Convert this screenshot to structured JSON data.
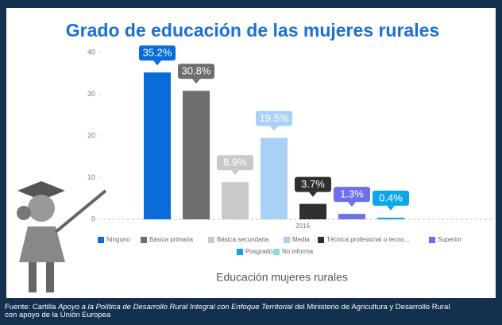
{
  "chart_data": {
    "type": "bar",
    "title": "Grado de educación de las mujeres rurales",
    "categories": [
      "2016"
    ],
    "series": [
      {
        "name": "Ninguno",
        "color": "#0a6cd8",
        "values": [
          35.2
        ],
        "value_labels": [
          "35.2%"
        ]
      },
      {
        "name": "Básica primaria",
        "color": "#6e6e6e",
        "values": [
          30.8
        ],
        "value_labels": [
          "30.8%"
        ]
      },
      {
        "name": "Básica secundaria",
        "color": "#c9c9c9",
        "values": [
          8.9
        ],
        "value_labels": [
          "8.9%"
        ]
      },
      {
        "name": "Media",
        "color": "#a9d1f7",
        "values": [
          19.5
        ],
        "value_labels": [
          "19.5%"
        ]
      },
      {
        "name": "Técnica profesional o tecno...",
        "color": "#2f2f2f",
        "values": [
          3.7
        ],
        "value_labels": [
          "3.7%"
        ]
      },
      {
        "name": "Superior",
        "color": "#6c6ff0",
        "values": [
          1.3
        ],
        "value_labels": [
          "1.3%"
        ]
      },
      {
        "name": "Posgrado",
        "color": "#0aa8ea",
        "values": [
          0.4
        ],
        "value_labels": [
          "0.4%"
        ]
      },
      {
        "name": "No informa",
        "color": "#86e3c9",
        "values": [
          null
        ]
      }
    ],
    "ylim": [
      0,
      40
    ],
    "yticks": [
      0,
      10,
      20,
      30,
      40
    ],
    "xlabel": "Educación mujeres rurales"
  },
  "source": {
    "prefix": "Fuente: Cartilla ",
    "italic": "Apoyo a la Política de Desarrollo Rural Integral con Enfoque Territorial",
    "suffix": " del Ministerio de Agricultura y Desarrollo Rural",
    "line2": "con apoyo de la Unión Europea"
  }
}
